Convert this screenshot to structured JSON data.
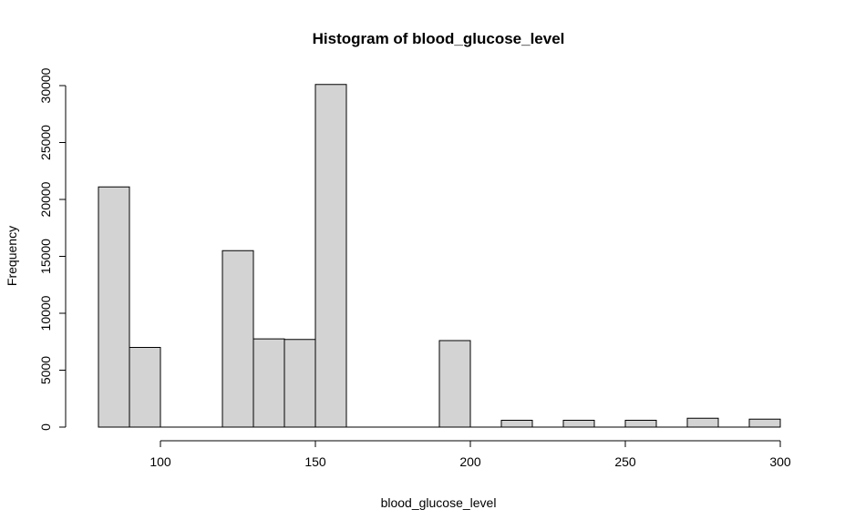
{
  "chart_data": {
    "type": "bar",
    "title": "Histogram of blood_glucose_level",
    "xlabel": "blood_glucose_level",
    "ylabel": "Frequency",
    "xlim": [
      80,
      300
    ],
    "ylim": [
      0,
      30000
    ],
    "x_ticks": [
      100,
      150,
      200,
      250,
      300
    ],
    "y_ticks": [
      0,
      5000,
      10000,
      15000,
      20000,
      25000,
      30000
    ],
    "bins": [
      {
        "x0": 80,
        "x1": 90,
        "value": 21100
      },
      {
        "x0": 90,
        "x1": 100,
        "value": 7000
      },
      {
        "x0": 100,
        "x1": 110,
        "value": 0
      },
      {
        "x0": 110,
        "x1": 120,
        "value": 0
      },
      {
        "x0": 120,
        "x1": 130,
        "value": 15500
      },
      {
        "x0": 130,
        "x1": 140,
        "value": 7750
      },
      {
        "x0": 140,
        "x1": 150,
        "value": 7700
      },
      {
        "x0": 150,
        "x1": 160,
        "value": 30100
      },
      {
        "x0": 160,
        "x1": 170,
        "value": 0
      },
      {
        "x0": 170,
        "x1": 180,
        "value": 0
      },
      {
        "x0": 180,
        "x1": 190,
        "value": 0
      },
      {
        "x0": 190,
        "x1": 200,
        "value": 7600
      },
      {
        "x0": 200,
        "x1": 210,
        "value": 0
      },
      {
        "x0": 210,
        "x1": 220,
        "value": 600
      },
      {
        "x0": 220,
        "x1": 230,
        "value": 0
      },
      {
        "x0": 230,
        "x1": 240,
        "value": 600
      },
      {
        "x0": 240,
        "x1": 250,
        "value": 0
      },
      {
        "x0": 250,
        "x1": 260,
        "value": 600
      },
      {
        "x0": 260,
        "x1": 270,
        "value": 0
      },
      {
        "x0": 270,
        "x1": 280,
        "value": 780
      },
      {
        "x0": 280,
        "x1": 290,
        "value": 0
      },
      {
        "x0": 290,
        "x1": 300,
        "value": 700
      }
    ],
    "bar_color": "#d3d3d3",
    "edge_color": "#000000",
    "grid": false,
    "legend": "none"
  }
}
